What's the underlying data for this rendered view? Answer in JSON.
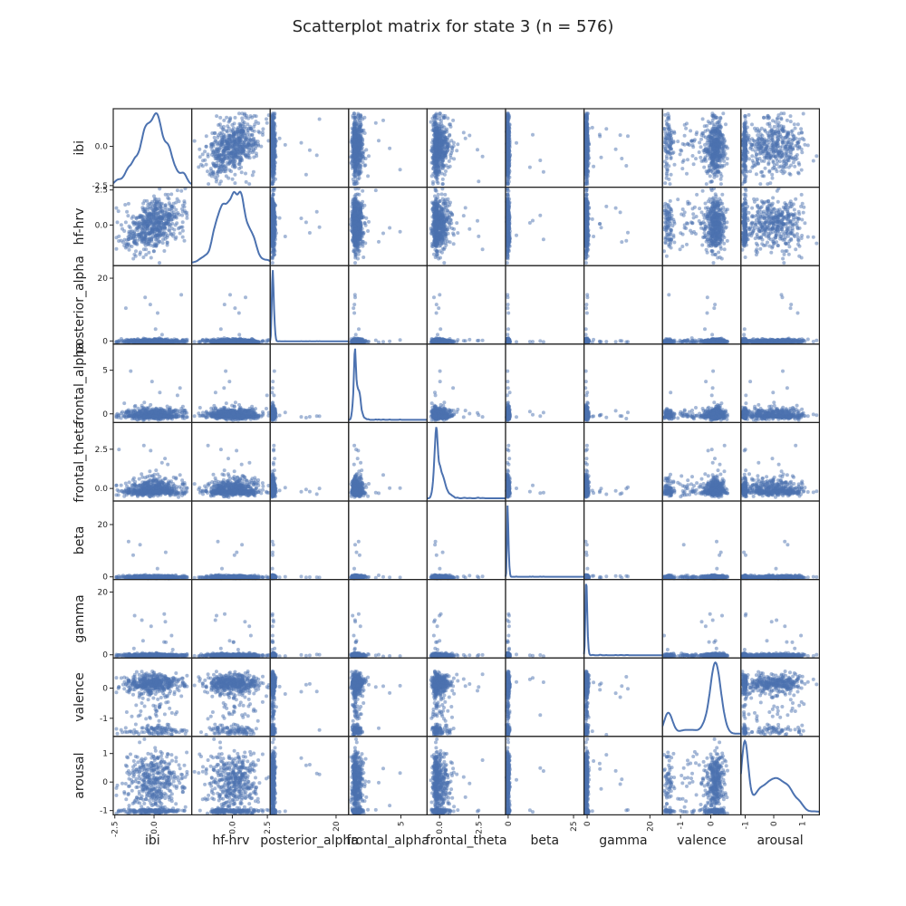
{
  "chart_data": {
    "type": "scatter-matrix",
    "title": "Scatterplot matrix for state 3 (n = 576)",
    "n": 576,
    "point_color": "#4c72b0",
    "diagonal": "kde",
    "variables": [
      "ibi",
      "hf-hrv",
      "posterior_alpha",
      "frontal_alpha",
      "frontal_theta",
      "beta",
      "gamma",
      "valence",
      "arousal"
    ],
    "ranges": {
      "ibi": [
        -2.6,
        2.4
      ],
      "hf-hrv": [
        -2.9,
        2.7
      ],
      "posterior_alpha": [
        -1,
        24
      ],
      "frontal_alpha": [
        -1,
        8
      ],
      "frontal_theta": [
        -0.8,
        4.2
      ],
      "beta": [
        -1,
        29
      ],
      "gamma": [
        -1,
        24
      ],
      "valence": [
        -1.6,
        1.0
      ],
      "arousal": [
        -1.15,
        1.6
      ]
    },
    "x_ticks": {
      "ibi": [
        {
          "v": -2.5,
          "t": "-2.5"
        },
        {
          "v": 0,
          "t": "0.0"
        }
      ],
      "hf-hrv": [
        {
          "v": 0,
          "t": "0.0"
        },
        {
          "v": 2.5,
          "t": "2.5"
        }
      ],
      "posterior_alpha": [
        {
          "v": 20,
          "t": "20"
        }
      ],
      "frontal_alpha": [
        {
          "v": 5,
          "t": "5"
        }
      ],
      "frontal_theta": [
        {
          "v": 0,
          "t": "0.0"
        },
        {
          "v": 2.5,
          "t": "2.5"
        }
      ],
      "beta": [
        {
          "v": 0,
          "t": "0"
        },
        {
          "v": 25,
          "t": "25"
        }
      ],
      "gamma": [
        {
          "v": 0,
          "t": "0"
        },
        {
          "v": 20,
          "t": "20"
        }
      ],
      "valence": [
        {
          "v": -1,
          "t": "-1"
        },
        {
          "v": 0,
          "t": "0"
        }
      ],
      "arousal": [
        {
          "v": -1,
          "t": "-1"
        },
        {
          "v": 0,
          "t": "0"
        },
        {
          "v": 1,
          "t": "1"
        }
      ]
    },
    "y_ticks": {
      "ibi": [
        {
          "v": -2.5,
          "t": "-2.5"
        },
        {
          "v": 0,
          "t": "0.0"
        }
      ],
      "hf-hrv": [
        {
          "v": 0,
          "t": "0.0"
        },
        {
          "v": 2.5,
          "t": "2.5"
        }
      ],
      "posterior_alpha": [
        {
          "v": 0,
          "t": "0"
        },
        {
          "v": 20,
          "t": "20"
        }
      ],
      "frontal_alpha": [
        {
          "v": 0,
          "t": "0"
        },
        {
          "v": 5,
          "t": "5"
        }
      ],
      "frontal_theta": [
        {
          "v": 0,
          "t": "0.0"
        },
        {
          "v": 2.5,
          "t": "2.5"
        }
      ],
      "beta": [
        {
          "v": 0,
          "t": "0"
        },
        {
          "v": 20,
          "t": "20"
        }
      ],
      "gamma": [
        {
          "v": 0,
          "t": "0"
        },
        {
          "v": 20,
          "t": "20"
        }
      ],
      "valence": [
        {
          "v": -1,
          "t": "-1"
        },
        {
          "v": 0,
          "t": "0"
        }
      ],
      "arousal": [
        {
          "v": -1,
          "t": "-1"
        },
        {
          "v": 0,
          "t": "0"
        },
        {
          "v": 1,
          "t": "1"
        }
      ]
    },
    "grid": false,
    "legend": "none"
  }
}
